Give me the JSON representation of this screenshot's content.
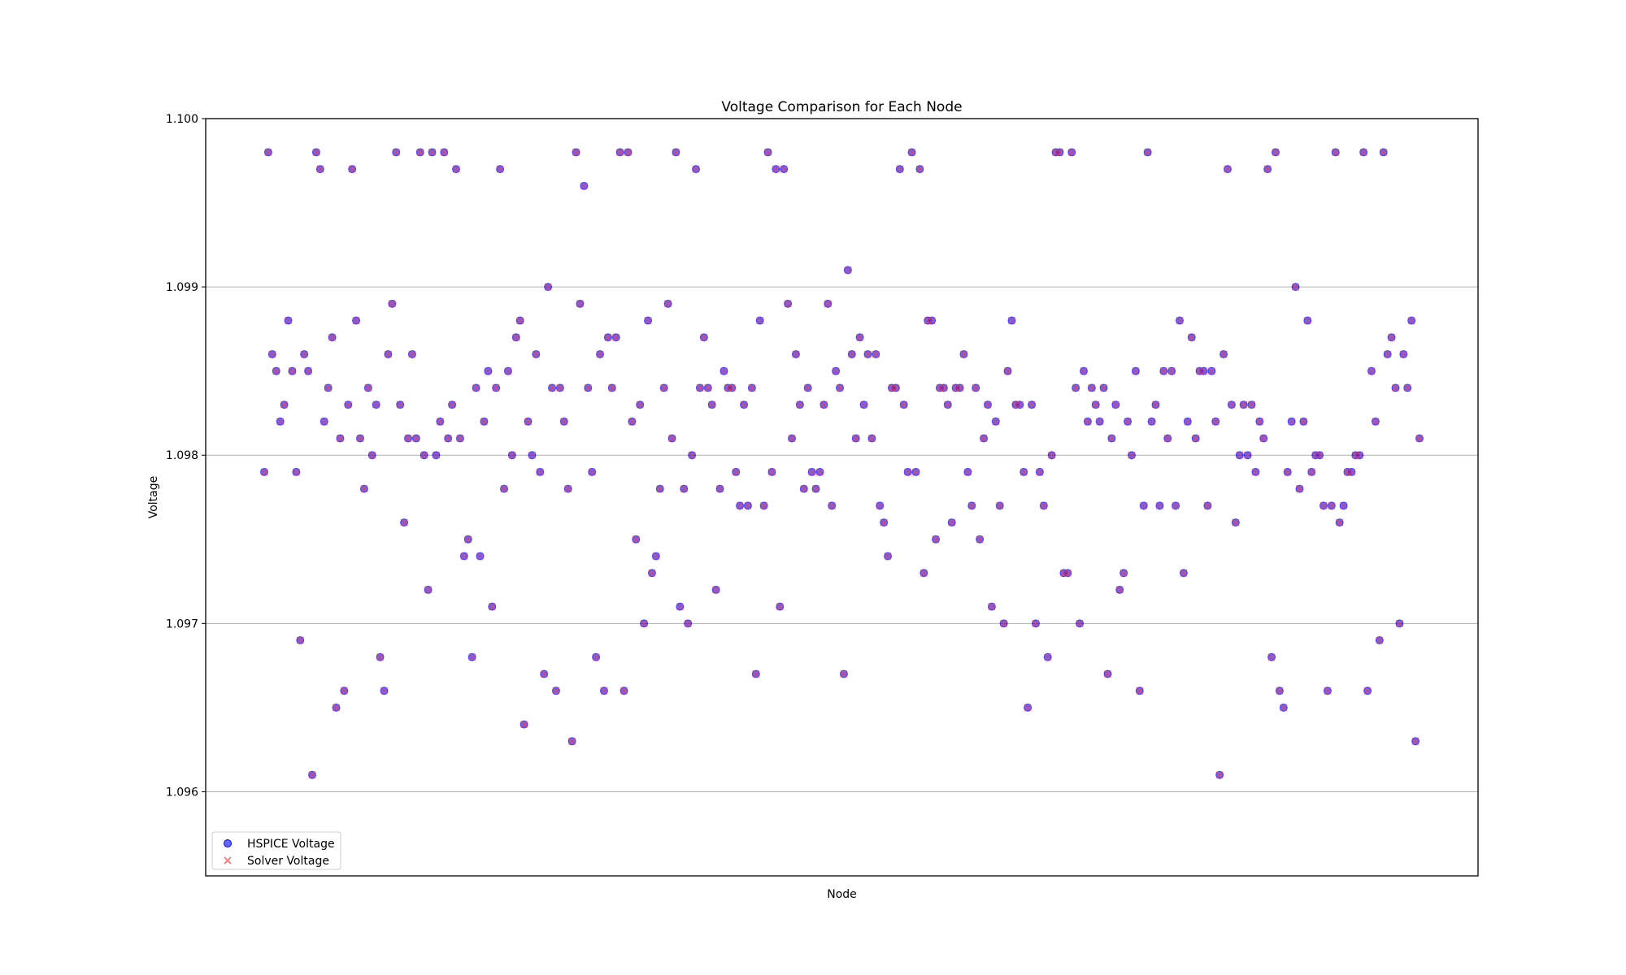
{
  "chart_data": {
    "type": "scatter",
    "title": "Voltage Comparison for Each Node",
    "xlabel": "Node",
    "ylabel": "Voltage",
    "ylim": [
      1.0955,
      1.1
    ],
    "yticks": [
      "1.096",
      "1.097",
      "1.098",
      "1.099",
      "1.100"
    ],
    "ytick_values": [
      1.096,
      1.097,
      1.098,
      1.099,
      1.1
    ],
    "xticks_visible": false,
    "grid": "y",
    "legend_position": "lower-left",
    "colors": {
      "hspice": "#0000ff",
      "solver": "#ff3b3b",
      "grid": "#b0b0b0"
    },
    "series": [
      {
        "name": "HSPICE Voltage",
        "marker": "circle"
      },
      {
        "name": "Solver Voltage",
        "marker": "x"
      }
    ],
    "y": [
      1.0979,
      1.0998,
      1.0986,
      1.0985,
      1.0982,
      1.0983,
      1.0988,
      1.0985,
      1.0979,
      1.0969,
      1.0986,
      1.0985,
      1.0961,
      1.0998,
      1.0997,
      1.0982,
      1.0984,
      1.0987,
      1.0965,
      1.0981,
      1.0966,
      1.0983,
      1.0997,
      1.0988,
      1.0981,
      1.0978,
      1.0984,
      1.098,
      1.0983,
      1.0968,
      1.0966,
      1.0986,
      1.0989,
      1.0998,
      1.0983,
      1.0976,
      1.0981,
      1.0986,
      1.0981,
      1.0998,
      1.098,
      1.0972,
      1.0998,
      1.098,
      1.0982,
      1.0998,
      1.0981,
      1.0983,
      1.0997,
      1.0981,
      1.0974,
      1.0975,
      1.0968,
      1.0984,
      1.0974,
      1.0982,
      1.0985,
      1.0971,
      1.0984,
      1.0997,
      1.0978,
      1.0985,
      1.098,
      1.0987,
      1.0988,
      1.0964,
      1.0982,
      1.098,
      1.0986,
      1.0979,
      1.0967,
      1.099,
      1.0984,
      1.0966,
      1.0984,
      1.0982,
      1.0978,
      1.0963,
      1.0998,
      1.0989,
      1.0996,
      1.0984,
      1.0979,
      1.0968,
      1.0986,
      1.0966,
      1.0987,
      1.0984,
      1.0987,
      1.0998,
      1.0966,
      1.0998,
      1.0982,
      1.0975,
      1.0983,
      1.097,
      1.0988,
      1.0973,
      1.0974,
      1.0978,
      1.0984,
      1.0989,
      1.0981,
      1.0998,
      1.0971,
      1.0978,
      1.097,
      1.098,
      1.0997,
      1.0984,
      1.0987,
      1.0984,
      1.0983,
      1.0972,
      1.0978,
      1.0985,
      1.0984,
      1.0984,
      1.0979,
      1.0977,
      1.0983,
      1.0977,
      1.0984,
      1.0967,
      1.0988,
      1.0977,
      1.0998,
      1.0979,
      1.0997,
      1.0971,
      1.0997,
      1.0989,
      1.0981,
      1.0986,
      1.0983,
      1.0978,
      1.0984,
      1.0979,
      1.0978,
      1.0979,
      1.0983,
      1.0989,
      1.0977,
      1.0985,
      1.0984,
      1.0967,
      1.0991,
      1.0986,
      1.0981,
      1.0987,
      1.0983,
      1.0986,
      1.0981,
      1.0986,
      1.0977,
      1.0976,
      1.0974,
      1.0984,
      1.0984,
      1.0997,
      1.0983,
      1.0979,
      1.0998,
      1.0979,
      1.0997,
      1.0973,
      1.0988,
      1.0988,
      1.0975,
      1.0984,
      1.0984,
      1.0983,
      1.0976,
      1.0984,
      1.0984,
      1.0986,
      1.0979,
      1.0977,
      1.0984,
      1.0975,
      1.0981,
      1.0983,
      1.0971,
      1.0982,
      1.0977,
      1.097,
      1.0985,
      1.0988,
      1.0983,
      1.0983,
      1.0979,
      1.0965,
      1.0983,
      1.097,
      1.0979,
      1.0977,
      1.0968,
      1.098,
      1.0998,
      1.0998,
      1.0973,
      1.0973,
      1.0998,
      1.0984,
      1.097,
      1.0985,
      1.0982,
      1.0984,
      1.0983,
      1.0982,
      1.0984,
      1.0967,
      1.0981,
      1.0983,
      1.0972,
      1.0973,
      1.0982,
      1.098,
      1.0985,
      1.0966,
      1.0977,
      1.0998,
      1.0982,
      1.0983,
      1.0977,
      1.0985,
      1.0981,
      1.0985,
      1.0977,
      1.0988,
      1.0973,
      1.0982,
      1.0987,
      1.0981,
      1.0985,
      1.0985,
      1.0977,
      1.0985,
      1.0982,
      1.0961,
      1.0986,
      1.0997,
      1.0983,
      1.0976,
      1.098,
      1.0983,
      1.098,
      1.0983,
      1.0979,
      1.0982,
      1.0981,
      1.0997,
      1.0968,
      1.0998,
      1.0966,
      1.0965,
      1.0979,
      1.0982,
      1.099,
      1.0978,
      1.0982,
      1.0988,
      1.0979,
      1.098,
      1.098,
      1.0977,
      1.0966,
      1.0977,
      1.0998,
      1.0976,
      1.0977,
      1.0979,
      1.0979,
      1.098,
      1.098,
      1.0998,
      1.0966,
      1.0985,
      1.0982,
      1.0969,
      1.0998,
      1.0986,
      1.0987,
      1.0984,
      1.097,
      1.0986,
      1.0984,
      1.0988,
      1.0963,
      1.0981
    ]
  },
  "legend": {
    "hspice_label": "HSPICE Voltage",
    "solver_label": "Solver Voltage"
  }
}
